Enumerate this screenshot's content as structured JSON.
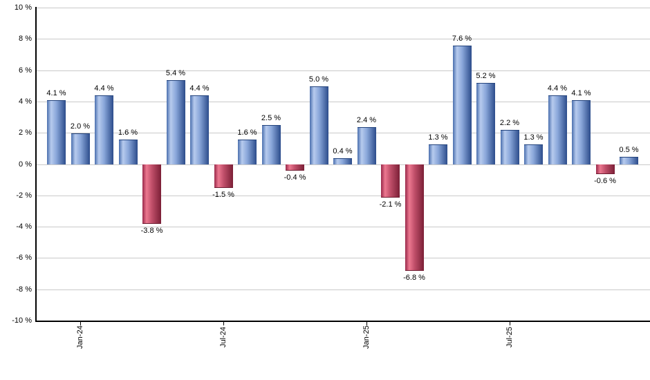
{
  "chart_data": {
    "type": "bar",
    "title": "",
    "ylim": [
      -10,
      10
    ],
    "grid": true,
    "legend": false,
    "y_ticks": [
      10,
      8,
      6,
      4,
      2,
      0,
      -2,
      -4,
      -6,
      -8,
      -10
    ],
    "y_tick_label_suffix": " %",
    "value_label_suffix": " %",
    "values": [
      4.1,
      2.0,
      4.4,
      1.6,
      -3.8,
      5.4,
      4.4,
      -1.5,
      1.6,
      2.5,
      -0.4,
      5.0,
      0.4,
      2.4,
      -2.1,
      -6.8,
      1.3,
      7.6,
      5.2,
      2.2,
      1.3,
      4.4,
      4.1,
      -0.6,
      0.5
    ],
    "value_labels": [
      "4.1 %",
      "2.0 %",
      "4.4 %",
      "1.6 %",
      "-3.8 %",
      "5.4 %",
      "4.4 %",
      "-1.5 %",
      "1.6 %",
      "2.5 %",
      "-0.4 %",
      "5.0 %",
      "0.4 %",
      "2.4 %",
      "-2.1 %",
      "-6.8 %",
      "1.3 %",
      "7.6 %",
      "5.2 %",
      "2.2 %",
      "1.3 %",
      "4.4 %",
      "4.1 %",
      "-0.6 %",
      "0.5 %"
    ],
    "y_tick_labels": [
      "10 %",
      "8 %",
      "6 %",
      "4 %",
      "2 %",
      "0 %",
      "-2 %",
      "-4 %",
      "-6 %",
      "-8 %",
      "-10 %"
    ],
    "x_tick_labels": [
      {
        "label": "Jan-24",
        "bar_index": 1
      },
      {
        "label": "Jul-24",
        "bar_index": 7
      },
      {
        "label": "Jan-25",
        "bar_index": 13
      },
      {
        "label": "Jul-25",
        "bar_index": 19
      }
    ],
    "colors": {
      "positive_bar_gradient": [
        "#4a6fae",
        "#b7cbee",
        "#8aa7da",
        "#2c4c8b"
      ],
      "negative_bar_gradient": [
        "#99294a",
        "#ec7890",
        "#c04f6a",
        "#7b1f36"
      ],
      "positive_bar_cap": "#23437c",
      "negative_bar_cap": "#6d1b30",
      "gridline": "#c9c9c9",
      "axis": "#000000",
      "text": "#000000",
      "background": "#ffffff"
    }
  }
}
